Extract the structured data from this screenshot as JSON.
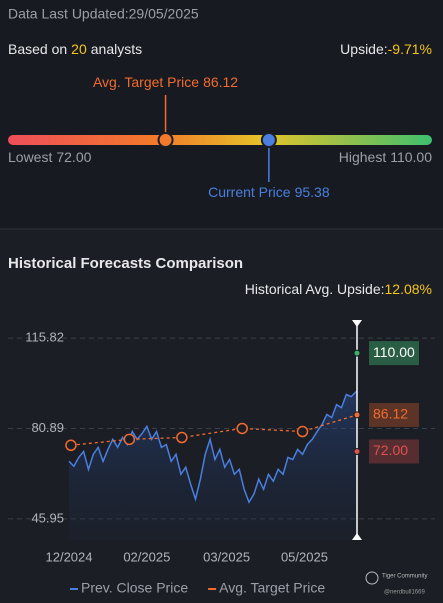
{
  "header": {
    "updated": "Data Last Updated:29/05/2025"
  },
  "analysts": {
    "prefix": "Based on",
    "count": "20",
    "suffix": "analysts",
    "upside_label": "Upside:",
    "upside_value": "-9.71%"
  },
  "gauge": {
    "lowest": {
      "label": "Lowest",
      "value": 72,
      "value_label": "72.00"
    },
    "highest": {
      "label": "Highest",
      "value": 110,
      "value_label": "110.00"
    },
    "target": {
      "label": "Avg. Target Price",
      "value": 86.12,
      "value_label": "86.12"
    },
    "current": {
      "label": "Current Price",
      "value": 95.38,
      "value_label": "95.38"
    }
  },
  "chart_data": {
    "type": "line",
    "title": "Historical Forecasts Comparison",
    "upside_label": "Historical Avg. Upside:",
    "upside_value": "12.08%",
    "xlim": [
      0,
      148
    ],
    "xticks": [
      {
        "value": 0,
        "label": "12/2024"
      },
      {
        "value": 40,
        "label": "02/2025"
      },
      {
        "value": 81,
        "label": "03/2025"
      },
      {
        "value": 121,
        "label": "05/2025"
      }
    ],
    "ylim": [
      37.8,
      122.8
    ],
    "yticks": [
      45.95,
      80.89,
      115.82
    ],
    "grid": true,
    "series": [
      {
        "name": "Prev. Close Price",
        "color": "#4a7fe0",
        "x": [
          0,
          2.5,
          5,
          7.5,
          10,
          12.5,
          15,
          17.5,
          20,
          22.5,
          25,
          27.5,
          30,
          32.5,
          35,
          37.5,
          40,
          42.5,
          45,
          47.5,
          50,
          52.5,
          55,
          57.5,
          60,
          62.5,
          65,
          67.5,
          70,
          72.5,
          75,
          77.5,
          80,
          82.5,
          85,
          87.5,
          90,
          92.5,
          95,
          97.5,
          100,
          102.5,
          105,
          107.5,
          110,
          112.5,
          115,
          117.5,
          120,
          122.5,
          125,
          127.5,
          130,
          132.5,
          135,
          137.5,
          140,
          142.5,
          145,
          148
        ],
        "values": [
          68.2,
          66.3,
          69.7,
          72.0,
          65.1,
          70.9,
          73.6,
          68.2,
          72.8,
          76.7,
          73.6,
          77.4,
          74.7,
          79.7,
          76.7,
          78.9,
          81.7,
          76.7,
          79.7,
          73.6,
          74.7,
          68.2,
          70.9,
          63.2,
          65.9,
          59.4,
          53.6,
          61.3,
          70.9,
          76.7,
          68.9,
          72.8,
          65.9,
          68.9,
          63.2,
          65.1,
          57.4,
          52.4,
          55.5,
          61.3,
          57.4,
          63.2,
          60.5,
          65.1,
          63.2,
          69.7,
          68.9,
          72.8,
          70.9,
          74.7,
          76.7,
          79.7,
          82.4,
          86.3,
          85.1,
          90.1,
          88.9,
          94.0,
          93.2,
          95.38
        ]
      },
      {
        "name": "Avg. Target Price",
        "color": "#f26b2e",
        "x": [
          1,
          31,
          58,
          89,
          120,
          148
        ],
        "values": [
          74.4,
          76.7,
          77.4,
          80.9,
          79.7,
          86.12
        ]
      }
    ],
    "forecast_markers": [
      {
        "value": 110,
        "label": "110.00",
        "color": "#3fae6a"
      },
      {
        "value": 86.12,
        "label": "86.12",
        "color": "#f26b2e"
      },
      {
        "value": 72,
        "label": "72.00",
        "color": "#e0524f"
      }
    ]
  },
  "watermark": {
    "brand": "Tiger Community",
    "user": "@nerdbull1669"
  }
}
